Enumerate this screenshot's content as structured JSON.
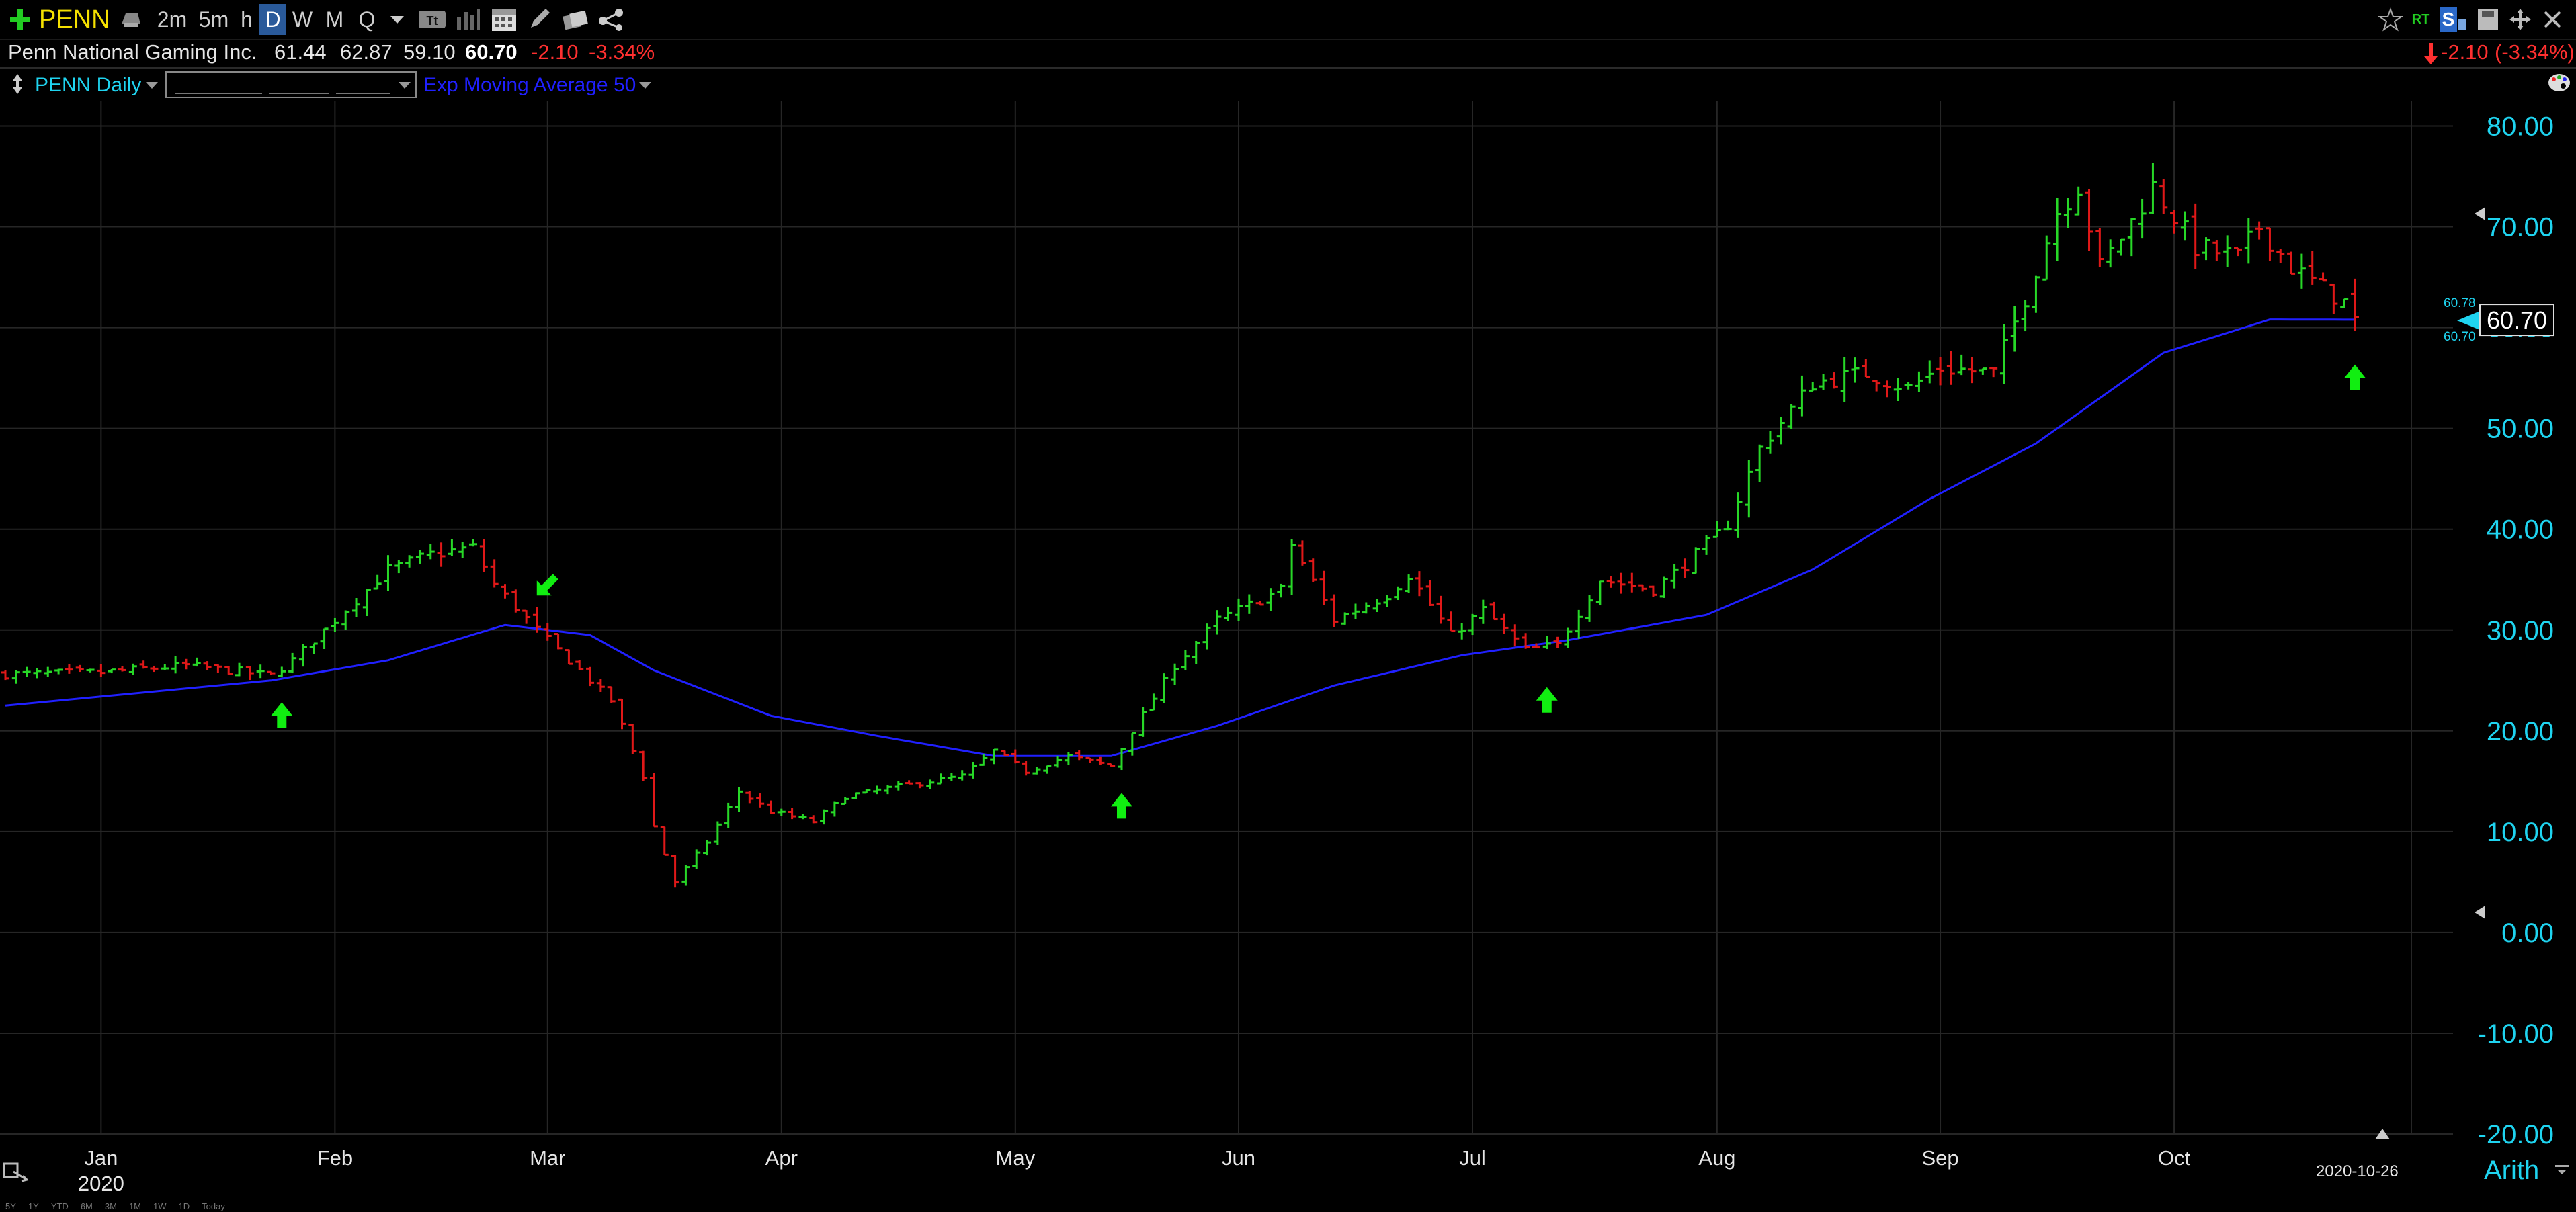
{
  "toolbar": {
    "add_icon": "green-plus-icon",
    "symbol": "PENN",
    "intervals": [
      "2m",
      "5m",
      "h",
      "D",
      "W",
      "M",
      "Q"
    ],
    "active_interval": "D",
    "right_labels": {
      "rt": "RT",
      "s": "S"
    }
  },
  "quote": {
    "name": "Penn National Gaming Inc.",
    "open": "61.44",
    "high": "62.87",
    "low": "59.10",
    "last": "60.70",
    "change": "-2.10",
    "change_pct": "-3.34%",
    "right_change": "-2.10",
    "right_change_pct": "(-3.34%)"
  },
  "studies": {
    "price_label": "PENN Daily",
    "ma_label": "Exp Moving Average 50"
  },
  "colors": {
    "up": "#27d827",
    "down": "#e01818",
    "ma": "#2020ff",
    "axis_text": "#1fd4f0",
    "arrow": "#11ee11",
    "grid": "#262626"
  },
  "chart_data": {
    "type": "ohlc",
    "symbol": "PENN",
    "interval": "Daily",
    "y_ticks": [
      "80.00",
      "70.00",
      "60.00",
      "50.00",
      "40.00",
      "30.00",
      "20.00",
      "10.00",
      "0.00",
      "-10.00",
      "-20.00"
    ],
    "ylim": [
      -20,
      82.5
    ],
    "x_ticks": [
      {
        "label": "Jan",
        "date": "2020-01-02"
      },
      {
        "label": "Feb",
        "date": "2020-02-03"
      },
      {
        "label": "Mar",
        "date": "2020-03-02"
      },
      {
        "label": "Apr",
        "date": "2020-04-01"
      },
      {
        "label": "May",
        "date": "2020-05-01"
      },
      {
        "label": "Jun",
        "date": "2020-06-01"
      },
      {
        "label": "Jul",
        "date": "2020-07-01"
      },
      {
        "label": "Aug",
        "date": "2020-08-03"
      },
      {
        "label": "Sep",
        "date": "2020-09-01"
      },
      {
        "label": "Oct",
        "date": "2020-10-01"
      }
    ],
    "year_label": "2020",
    "end_date_label": "2020-10-26",
    "scale_label": "Arith",
    "last_price_label": "60.70",
    "small_labels": [
      "60.78",
      "60.70"
    ],
    "range_buttons": [
      "5Y",
      "1Y",
      "YTD",
      "6M",
      "3M",
      "1M",
      "1W",
      "1D",
      "Today"
    ],
    "price_keypoints": [
      [
        "2019-12-20",
        25.6
      ],
      [
        "2020-01-02",
        25.8
      ],
      [
        "2020-01-14",
        26.5
      ],
      [
        "2020-01-24",
        25.5
      ],
      [
        "2020-01-28",
        27.0
      ],
      [
        "2020-02-03",
        31.0
      ],
      [
        "2020-02-10",
        36.0
      ],
      [
        "2020-02-14",
        37.5
      ],
      [
        "2020-02-20",
        38.2
      ],
      [
        "2020-02-24",
        34.5
      ],
      [
        "2020-02-28",
        30.0
      ],
      [
        "2020-03-05",
        26.0
      ],
      [
        "2020-03-10",
        23.0
      ],
      [
        "2020-03-13",
        15.5
      ],
      [
        "2020-03-16",
        10.5
      ],
      [
        "2020-03-18",
        5.0
      ],
      [
        "2020-03-23",
        9.0
      ],
      [
        "2020-03-26",
        14.0
      ],
      [
        "2020-03-31",
        12.0
      ],
      [
        "2020-04-06",
        11.0
      ],
      [
        "2020-04-09",
        13.5
      ],
      [
        "2020-04-16",
        14.5
      ],
      [
        "2020-04-24",
        15.5
      ],
      [
        "2020-04-29",
        18.0
      ],
      [
        "2020-05-04",
        16.0
      ],
      [
        "2020-05-08",
        17.5
      ],
      [
        "2020-05-14",
        16.5
      ],
      [
        "2020-05-18",
        20.0
      ],
      [
        "2020-05-22",
        26.5
      ],
      [
        "2020-05-28",
        31.0
      ],
      [
        "2020-06-05",
        34.0
      ],
      [
        "2020-06-08",
        38.5
      ],
      [
        "2020-06-12",
        31.0
      ],
      [
        "2020-06-19",
        33.5
      ],
      [
        "2020-06-23",
        35.5
      ],
      [
        "2020-06-29",
        29.5
      ],
      [
        "2020-07-02",
        32.0
      ],
      [
        "2020-07-08",
        28.0
      ],
      [
        "2020-07-13",
        28.5
      ],
      [
        "2020-07-17",
        35.0
      ],
      [
        "2020-07-24",
        34.0
      ],
      [
        "2020-07-29",
        36.5
      ],
      [
        "2020-08-04",
        40.5
      ],
      [
        "2020-08-07",
        48.0
      ],
      [
        "2020-08-14",
        54.5
      ],
      [
        "2020-08-21",
        55.5
      ],
      [
        "2020-08-27",
        54.0
      ],
      [
        "2020-09-01",
        56.0
      ],
      [
        "2020-09-08",
        55.5
      ],
      [
        "2020-09-11",
        63.0
      ],
      [
        "2020-09-16",
        71.5
      ],
      [
        "2020-09-18",
        74.0
      ],
      [
        "2020-09-22",
        66.0
      ],
      [
        "2020-09-25",
        70.5
      ],
      [
        "2020-09-29",
        74.0
      ],
      [
        "2020-10-05",
        68.0
      ],
      [
        "2020-10-09",
        67.0
      ],
      [
        "2020-10-13",
        70.0
      ],
      [
        "2020-10-16",
        66.0
      ],
      [
        "2020-10-23",
        62.5
      ],
      [
        "2020-10-26",
        60.7
      ]
    ],
    "ema_keypoints": [
      [
        "2019-12-20",
        22.5
      ],
      [
        "2020-01-24",
        25.0
      ],
      [
        "2020-02-10",
        27.0
      ],
      [
        "2020-02-25",
        30.5
      ],
      [
        "2020-03-06",
        29.5
      ],
      [
        "2020-03-16",
        26.0
      ],
      [
        "2020-03-31",
        21.5
      ],
      [
        "2020-04-14",
        19.5
      ],
      [
        "2020-04-29",
        17.5
      ],
      [
        "2020-05-14",
        17.5
      ],
      [
        "2020-05-28",
        20.5
      ],
      [
        "2020-06-12",
        24.5
      ],
      [
        "2020-06-30",
        27.5
      ],
      [
        "2020-07-14",
        29.0
      ],
      [
        "2020-07-31",
        31.5
      ],
      [
        "2020-08-14",
        36.0
      ],
      [
        "2020-08-31",
        43.0
      ],
      [
        "2020-09-14",
        48.5
      ],
      [
        "2020-09-30",
        57.5
      ],
      [
        "2020-10-14",
        60.8
      ],
      [
        "2020-10-26",
        60.78
      ]
    ],
    "signal_arrows": [
      {
        "date": "2020-01-27",
        "price": 21.5,
        "direction": "up"
      },
      {
        "date": "2020-03-02",
        "price": 34.5,
        "direction": "down-left"
      },
      {
        "date": "2020-05-15",
        "price": 12.5,
        "direction": "up"
      },
      {
        "date": "2020-07-10",
        "price": 23.0,
        "direction": "up"
      },
      {
        "date": "2020-10-26",
        "price": 55.0,
        "direction": "up"
      }
    ]
  }
}
